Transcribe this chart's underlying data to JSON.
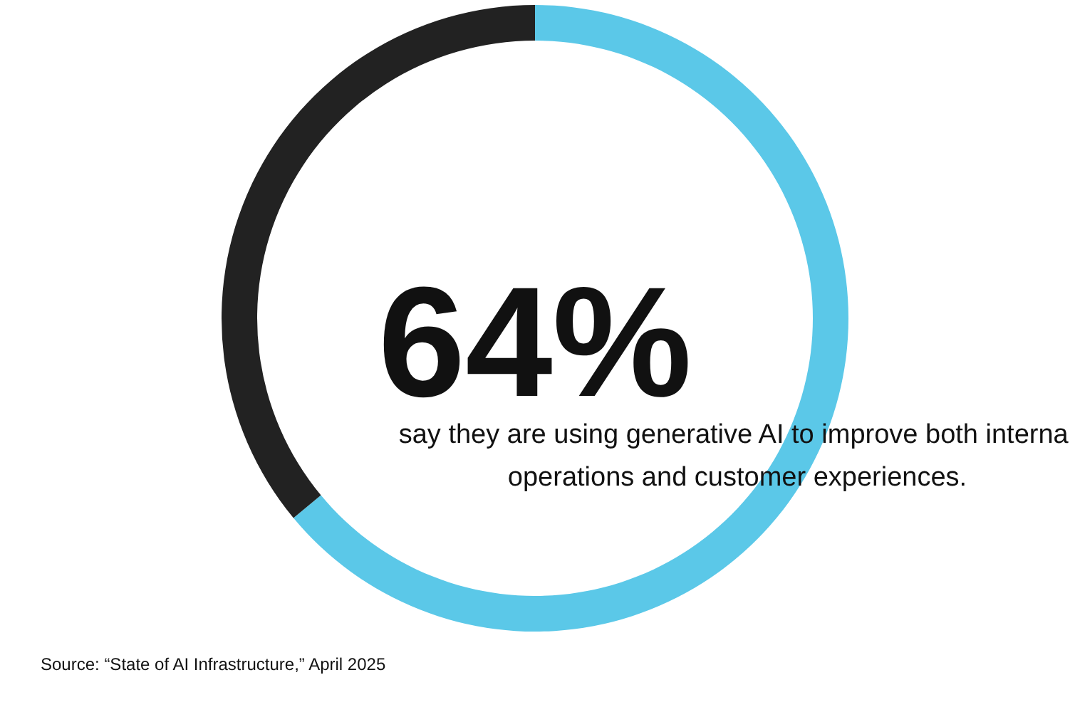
{
  "chart_data": {
    "type": "donut",
    "categories": [
      null,
      null
    ],
    "values": [
      64,
      36
    ],
    "colors": [
      "#5bc8e8",
      "#222222"
    ],
    "value_labels": [
      "64%",
      null
    ],
    "annotations": [
      "say they are using generative AI to improve both internal\noperations and customer experiences.",
      "Source: “State of AI Infrastructure,” April 2025"
    ]
  }
}
